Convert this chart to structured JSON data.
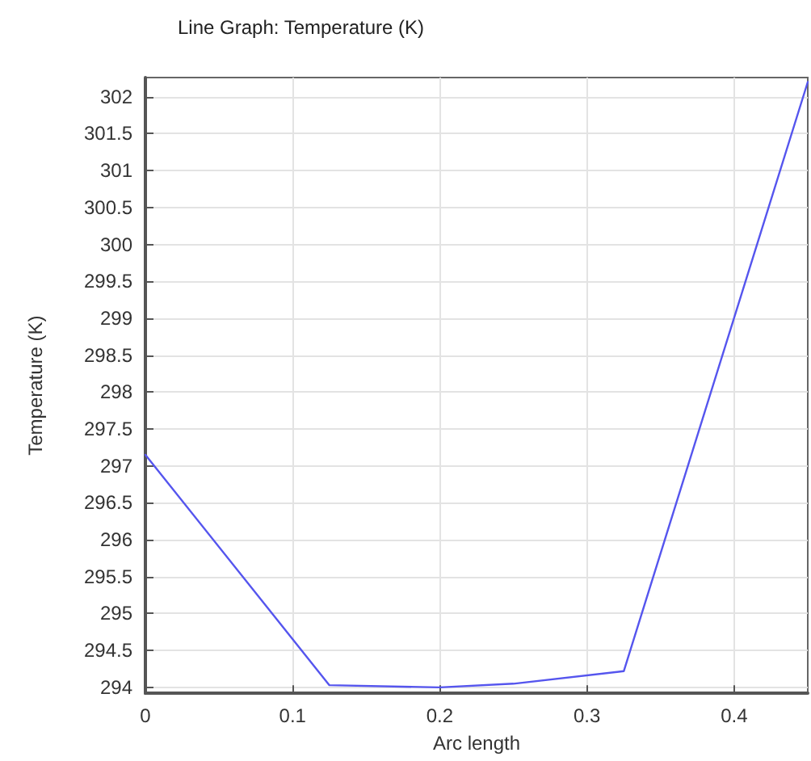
{
  "chart_data": {
    "type": "line",
    "title": "Line Graph: Temperature (K)",
    "xlabel": "Arc length",
    "ylabel": "Temperature (K)",
    "x": [
      0,
      0.125,
      0.2,
      0.25,
      0.325,
      0.45
    ],
    "series": [
      {
        "color": "#5555ee",
        "values": [
          297.15,
          294.03,
          294.0,
          294.05,
          294.22,
          302.2
        ]
      }
    ],
    "xlim": [
      0,
      0.45
    ],
    "xticks": [
      0,
      0.1,
      0.2,
      0.3,
      0.4
    ],
    "ylim": [
      293.92,
      302.26
    ],
    "yticks": [
      294,
      294.5,
      295,
      295.5,
      296,
      296.5,
      297,
      297.5,
      298,
      298.5,
      299,
      299.5,
      300,
      300.5,
      301,
      301.5,
      302
    ],
    "grid": true,
    "marker": "none",
    "line_style": "solid"
  }
}
